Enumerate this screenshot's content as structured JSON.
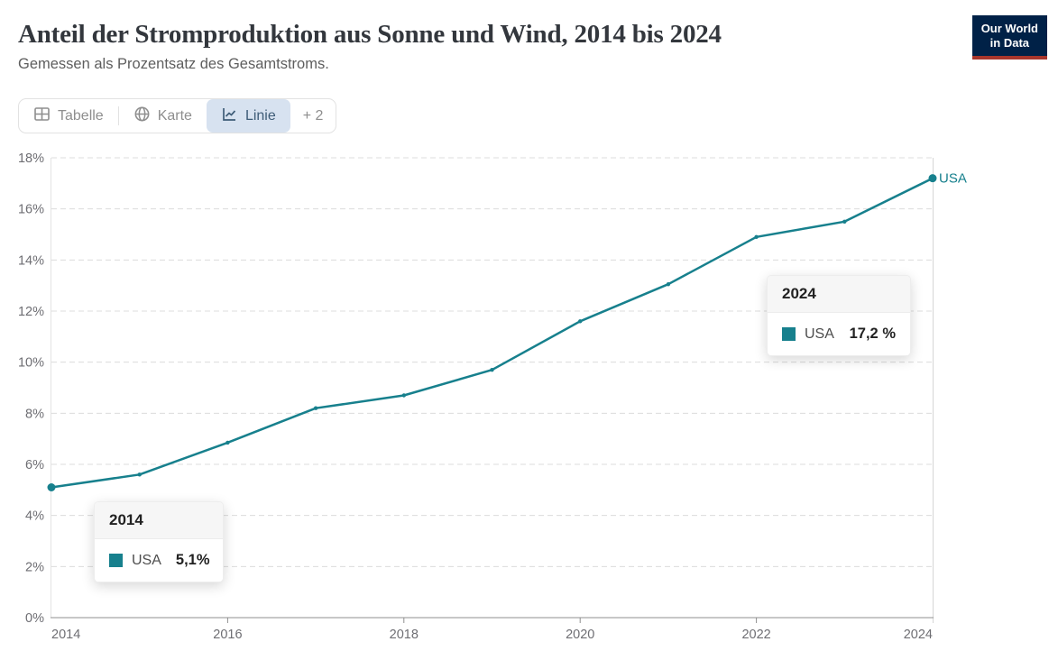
{
  "header": {
    "title": "Anteil der Stromproduktion aus Sonne und Wind, 2014 bis 2024",
    "subtitle": "Gemessen als Prozentsatz des Gesamtstroms.",
    "logo": {
      "line1": "Our World",
      "line2": "in Data",
      "bg_color": "#002147",
      "accent_color": "#a8362c"
    }
  },
  "tabs": {
    "items": [
      {
        "label": "Tabelle",
        "icon": "table-icon",
        "selected": false
      },
      {
        "label": "Karte",
        "icon": "globe-icon",
        "selected": false
      },
      {
        "label": "Linie",
        "icon": "line-chart-icon",
        "selected": true
      }
    ],
    "more_label": "+ 2",
    "selected_bg": "#d7e2f0",
    "selected_text": "#3e5c77"
  },
  "chart_data": {
    "type": "line",
    "title": "Anteil der Stromproduktion aus Sonne und Wind, 2014 bis 2024",
    "xlabel": "",
    "ylabel": "",
    "xlim": [
      2014,
      2024
    ],
    "ylim": [
      0,
      18
    ],
    "grid": "horizontal-dashed",
    "x_ticks": [
      2014,
      2016,
      2018,
      2020,
      2022,
      2024
    ],
    "y_ticks": [
      {
        "value": 0,
        "label": "0%"
      },
      {
        "value": 2,
        "label": "2%"
      },
      {
        "value": 4,
        "label": "4%"
      },
      {
        "value": 6,
        "label": "6%"
      },
      {
        "value": 8,
        "label": "8%"
      },
      {
        "value": 10,
        "label": "10%"
      },
      {
        "value": 12,
        "label": "12%"
      },
      {
        "value": 14,
        "label": "14%"
      },
      {
        "value": 16,
        "label": "16%"
      },
      {
        "value": 18,
        "label": "18%"
      }
    ],
    "series": [
      {
        "name": "USA",
        "color": "#17808d",
        "x": [
          2014,
          2015,
          2016,
          2017,
          2018,
          2019,
          2020,
          2021,
          2022,
          2023,
          2024
        ],
        "values": [
          5.1,
          5.6,
          6.85,
          8.2,
          8.7,
          9.7,
          11.6,
          13.05,
          14.9,
          15.5,
          17.2
        ]
      }
    ],
    "end_label": "USA"
  },
  "tooltips": [
    {
      "year": "2014",
      "entity": "USA",
      "value": "5,1%",
      "color": "#17808d"
    },
    {
      "year": "2024",
      "entity": "USA",
      "value": "17,2 %",
      "color": "#17808d"
    }
  ],
  "colors": {
    "line_teal": "#17808d",
    "logo_navy": "#002147",
    "logo_red": "#a8362c",
    "grid": "#dcdcdc",
    "axis": "#8f8f8f",
    "axis_text": "#6e6e73"
  }
}
